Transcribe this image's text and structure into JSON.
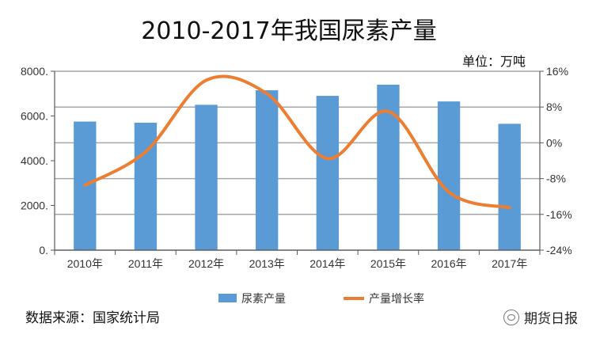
{
  "chart_data": {
    "type": "bar+line",
    "title": "2010-2017年我国尿素产量",
    "unit_label": "单位：万吨",
    "categories": [
      "2010年",
      "2011年",
      "2012年",
      "2013年",
      "2014年",
      "2015年",
      "2016年",
      "2017年"
    ],
    "series": [
      {
        "name": "尿素产量",
        "type": "bar",
        "axis": "left",
        "color": "#5b9bd5",
        "values": [
          5750,
          5700,
          6500,
          7150,
          6900,
          7400,
          6650,
          5650
        ]
      },
      {
        "name": "产量增长率",
        "type": "line",
        "axis": "right",
        "color": "#ed7d31",
        "values": [
          -9.5,
          -2,
          14,
          11,
          -3.5,
          7,
          -11,
          -14.5
        ]
      }
    ],
    "left_axis": {
      "ylim": [
        0,
        8000
      ],
      "ticks": [
        0,
        2000,
        4000,
        6000,
        8000
      ],
      "tick_labels": [
        "0.",
        "2000.",
        "4000.",
        "6000.",
        "8000."
      ]
    },
    "right_axis": {
      "ylim": [
        -24,
        16
      ],
      "ticks": [
        -24,
        -16,
        -8,
        0,
        8,
        16
      ],
      "tick_labels": [
        "-24%",
        "-16%",
        "-8%",
        "0%",
        "8%",
        "16%"
      ]
    },
    "grid": true,
    "legend_position": "bottom"
  },
  "footer": {
    "source": "数据来源：国家统计局",
    "brand": "期货日报"
  }
}
